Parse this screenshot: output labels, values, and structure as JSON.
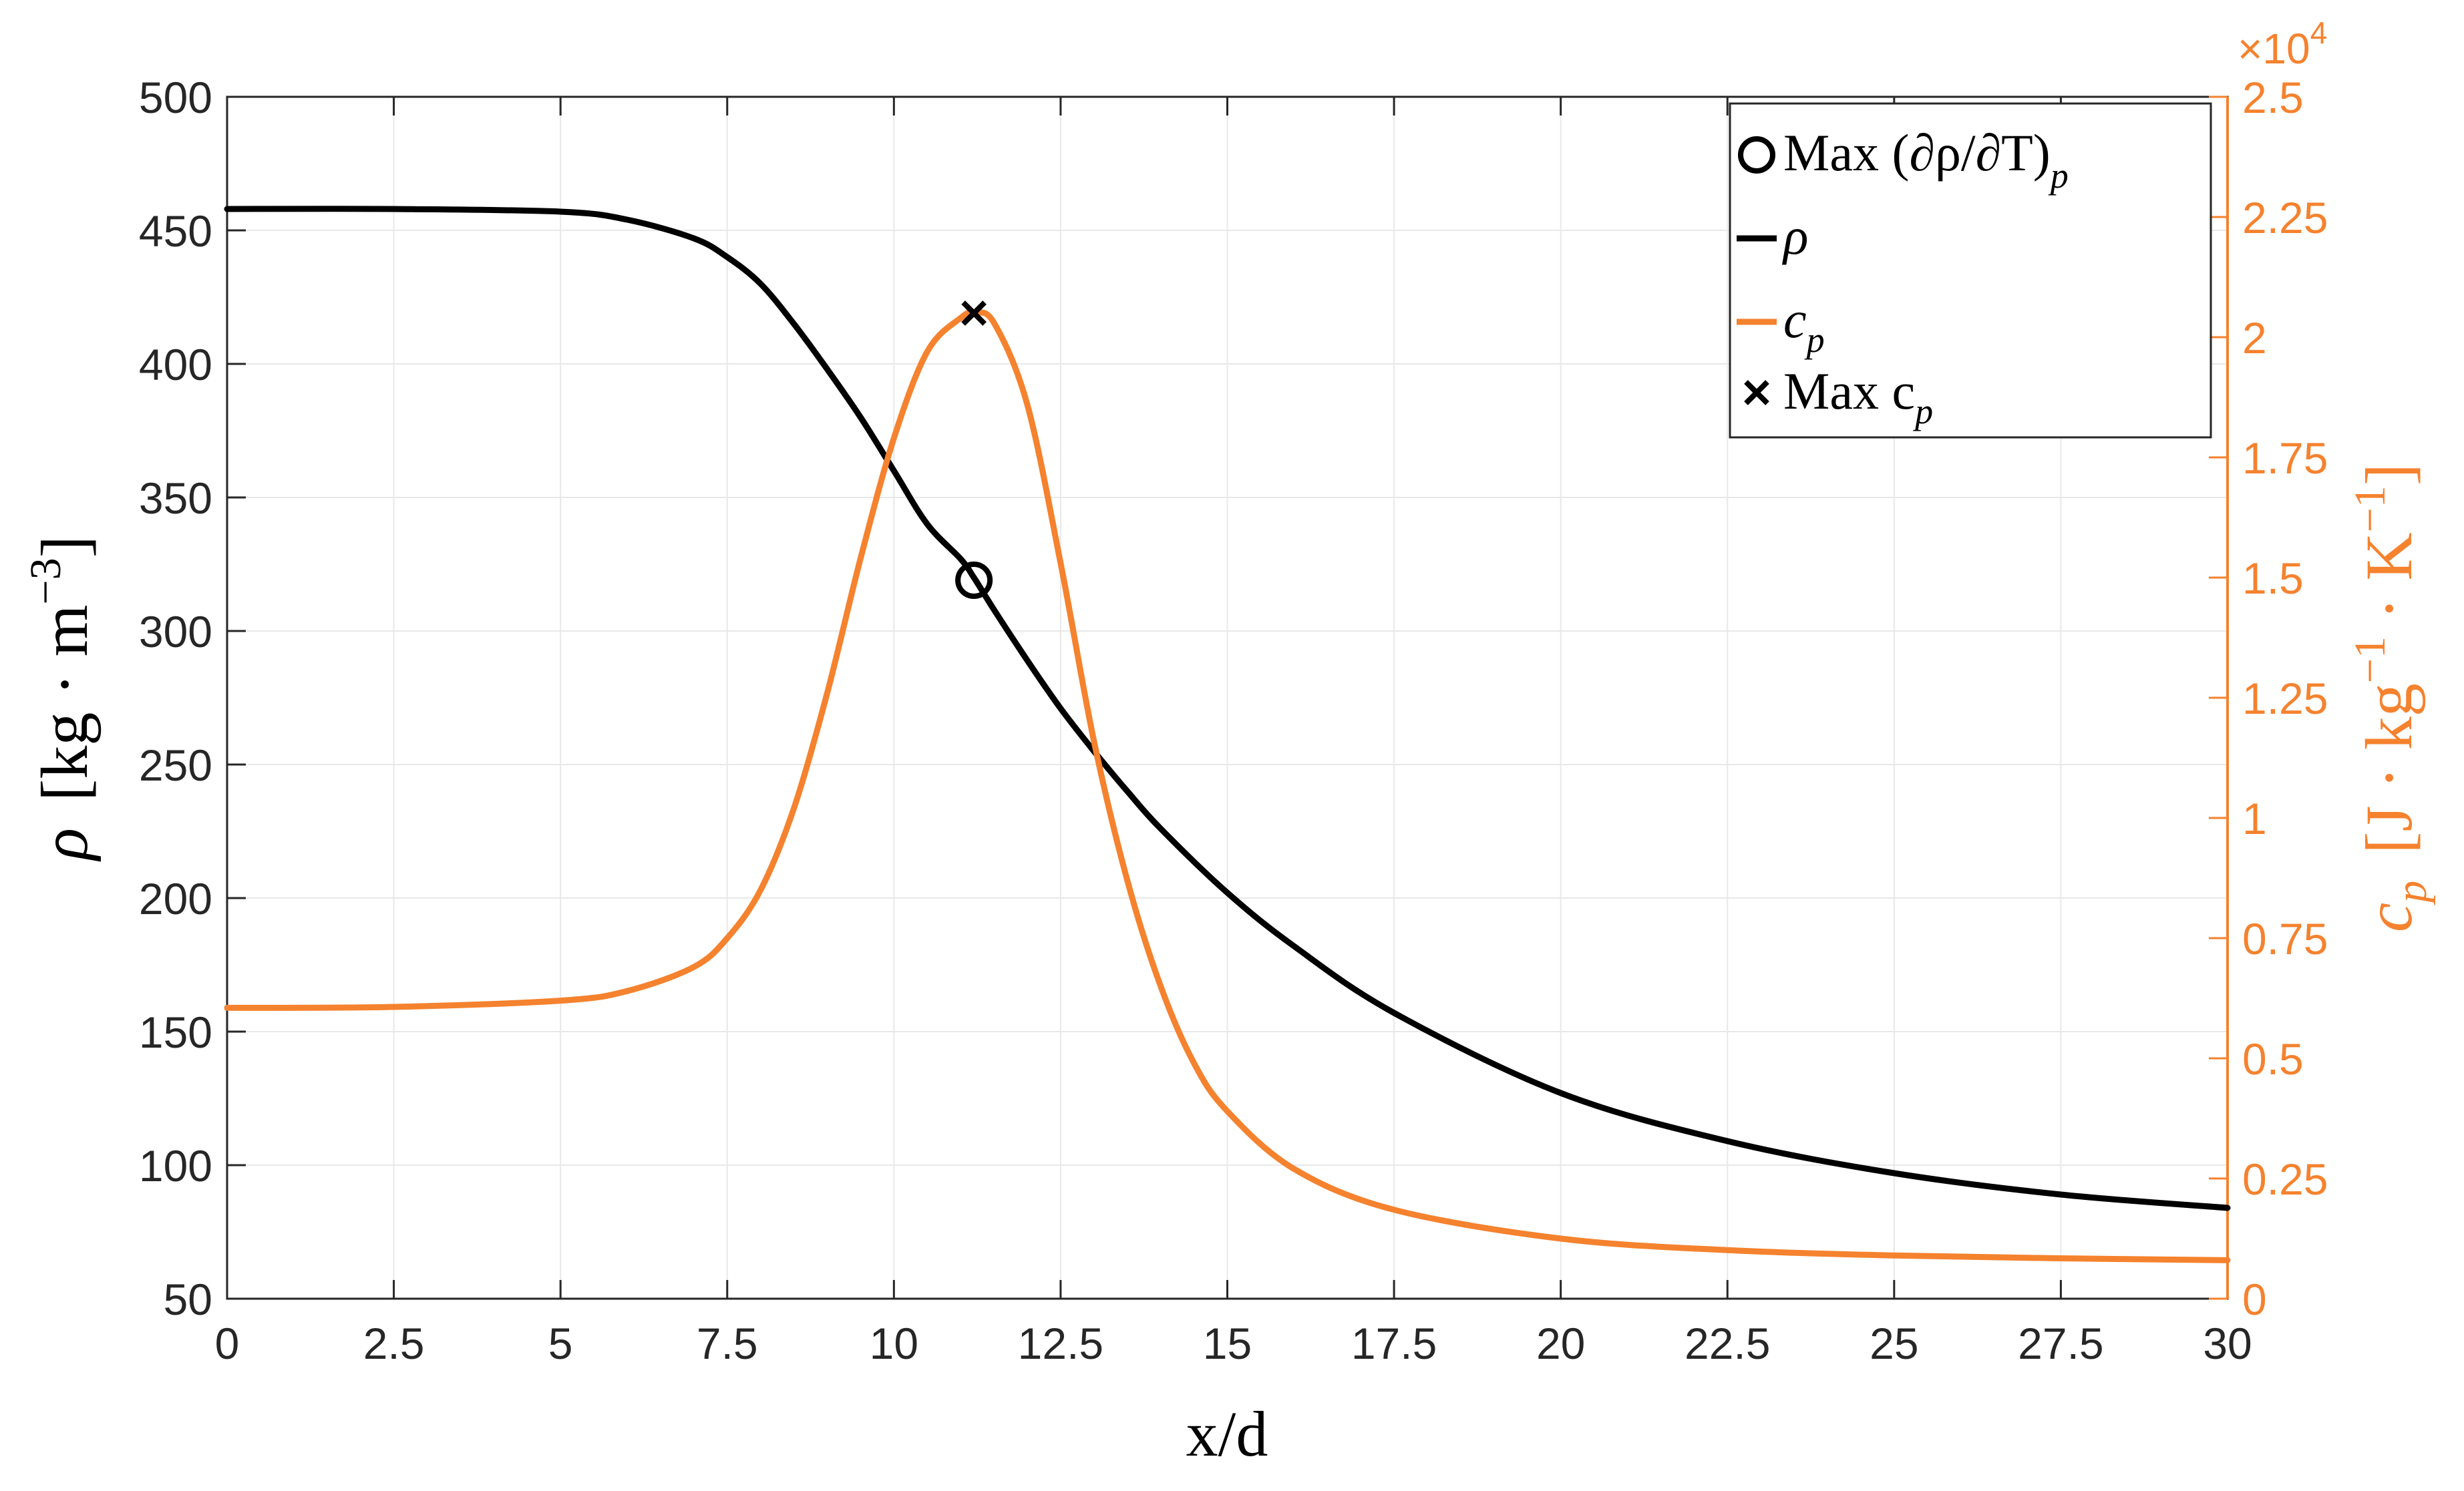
{
  "chart_data": {
    "type": "line",
    "title": "",
    "xlabel": "x/d",
    "ylabel_left": {
      "symbol": "ρ",
      "unit": "[kg · m",
      "exp": "−3",
      "close": "]"
    },
    "ylabel_right": {
      "symbol": "c",
      "sub": "p",
      "unit": "[J · kg",
      "exp1": "−1",
      "mid": " · K",
      "exp2": "−1",
      "close": "]"
    },
    "xlim": [
      0,
      30
    ],
    "ylim_left": [
      50,
      500
    ],
    "ylim_right": [
      0,
      25000
    ],
    "right_axis_multiplier": "×10",
    "right_axis_multiplier_exp": "4",
    "xticks": [
      "0",
      "2.5",
      "5",
      "7.5",
      "10",
      "12.5",
      "15",
      "17.5",
      "20",
      "22.5",
      "25",
      "27.5",
      "30"
    ],
    "yticks_left": [
      "50",
      "100",
      "150",
      "200",
      "250",
      "300",
      "350",
      "400",
      "450",
      "500"
    ],
    "yticks_right": [
      "0",
      "0.25",
      "0.5",
      "0.75",
      "1",
      "1.25",
      "1.5",
      "1.75",
      "2",
      "2.25",
      "2.5"
    ],
    "grid": true,
    "legend_position": "top-right",
    "legend": [
      {
        "marker": "circle",
        "label": "Max (∂ρ/∂T)",
        "sub": "p"
      },
      {
        "marker": "line-black",
        "label": "ρ",
        "sub": ""
      },
      {
        "marker": "line-orange",
        "label": "c",
        "sub": "p"
      },
      {
        "marker": "cross",
        "label": "Max c",
        "sub": "p"
      }
    ],
    "colors": {
      "rho": "#000000",
      "cp": "#f5822e",
      "grid": "#e8e8e8"
    },
    "series": [
      {
        "name": "ρ",
        "axis": "left",
        "x": [
          0,
          2.5,
          5,
          6,
          7,
          7.5,
          8,
          8.5,
          9,
          9.5,
          10,
          10.5,
          11,
          11.2,
          11.5,
          12,
          12.5,
          13,
          13.5,
          14,
          15,
          16,
          17.5,
          20,
          22.5,
          25,
          27.5,
          30
        ],
        "y": [
          458,
          458,
          457,
          454,
          447,
          440,
          430,
          415,
          398,
          380,
          360,
          340,
          327,
          320,
          308,
          289,
          271,
          255,
          240,
          226,
          202,
          182,
          157,
          127,
          109,
          97,
          89,
          84
        ]
      },
      {
        "name": "c",
        "axis": "right",
        "x": [
          0,
          2.5,
          5,
          6,
          7,
          7.5,
          8,
          8.5,
          9,
          9.5,
          10,
          10.5,
          11,
          11.2,
          11.5,
          12,
          12.5,
          13,
          13.5,
          14,
          14.5,
          15,
          16,
          17.5,
          20,
          22.5,
          25,
          27.5,
          30
        ],
        "y": [
          6050,
          6070,
          6200,
          6400,
          6900,
          7500,
          8500,
          10200,
          12600,
          15400,
          17900,
          19700,
          20400,
          20500,
          20300,
          18600,
          15300,
          11600,
          8700,
          6500,
          4900,
          3900,
          2700,
          1850,
          1250,
          1010,
          900,
          840,
          800
        ]
      }
    ],
    "markers": [
      {
        "name": "Max (∂ρ/∂T)p",
        "shape": "circle",
        "axis": "left",
        "x": 11.2,
        "y": 319
      },
      {
        "name": "Max cp",
        "shape": "cross",
        "axis": "right",
        "x": 11.2,
        "y": 20500
      }
    ]
  }
}
